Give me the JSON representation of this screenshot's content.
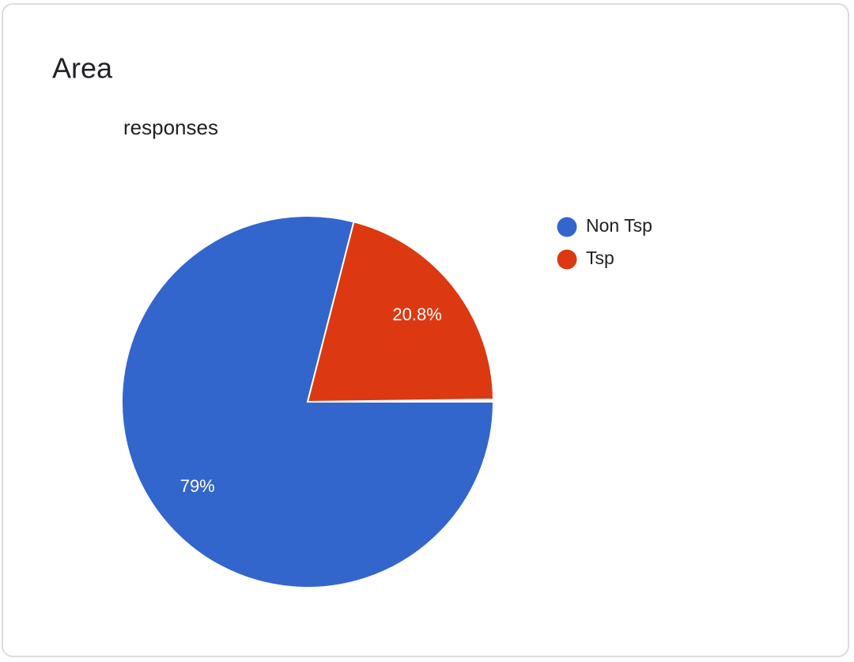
{
  "chart_data": {
    "type": "pie",
    "title": "Area",
    "subtitle": "responses",
    "categories": [
      "Non Tsp",
      "Tsp"
    ],
    "values": [
      79,
      20.8
    ],
    "value_labels": [
      "79%",
      "20.8%"
    ],
    "colors": [
      "#3366cc",
      "#dc3912"
    ],
    "legend": "right"
  }
}
